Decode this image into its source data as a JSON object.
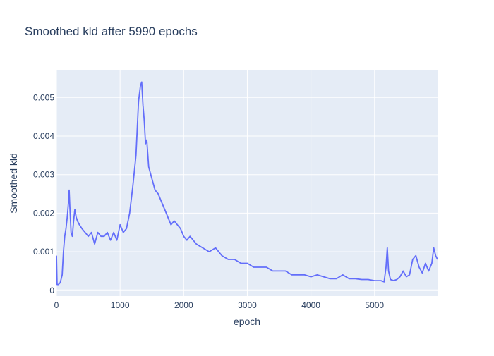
{
  "chart_data": {
    "type": "line",
    "title": "Smoothed kld after 5990 epochs",
    "xlabel": "epoch",
    "ylabel": "Smoothed kld",
    "xlim": [
      0,
      5990
    ],
    "ylim": [
      -0.00015,
      0.0057
    ],
    "x_ticks": [
      0,
      1000,
      2000,
      3000,
      4000,
      5000
    ],
    "x_tick_labels": [
      "0",
      "1000",
      "2000",
      "3000",
      "4000",
      "5000"
    ],
    "y_ticks": [
      0,
      0.001,
      0.002,
      0.003,
      0.004,
      0.005
    ],
    "y_tick_labels": [
      "0",
      "0.001",
      "0.002",
      "0.003",
      "0.004",
      "0.005"
    ],
    "grid": true,
    "colors": {
      "line": "#636efa",
      "plot_bg": "#e5ecf6",
      "grid": "#ffffff",
      "text": "#2a3f5f"
    },
    "series": [
      {
        "x": [
          0,
          10,
          30,
          60,
          90,
          110,
          130,
          150,
          170,
          190,
          200,
          210,
          230,
          250,
          270,
          290,
          310,
          330,
          360,
          400,
          450,
          500,
          550,
          600,
          650,
          700,
          750,
          800,
          850,
          900,
          950,
          1000,
          1050,
          1100,
          1150,
          1200,
          1250,
          1290,
          1320,
          1340,
          1360,
          1380,
          1400,
          1420,
          1450,
          1500,
          1550,
          1600,
          1650,
          1700,
          1750,
          1800,
          1850,
          1900,
          1950,
          2000,
          2050,
          2100,
          2200,
          2300,
          2400,
          2500,
          2600,
          2700,
          2800,
          2900,
          3000,
          3100,
          3200,
          3300,
          3400,
          3500,
          3600,
          3700,
          3800,
          3900,
          4000,
          4100,
          4200,
          4300,
          4400,
          4500,
          4600,
          4700,
          4800,
          4900,
          5000,
          5100,
          5150,
          5180,
          5200,
          5220,
          5250,
          5300,
          5350,
          5400,
          5450,
          5500,
          5550,
          5600,
          5650,
          5700,
          5750,
          5800,
          5850,
          5900,
          5930,
          5960,
          5990
        ],
        "y": [
          0.0009,
          0.00015,
          0.00015,
          0.0002,
          0.0004,
          0.001,
          0.0014,
          0.0016,
          0.0019,
          0.0023,
          0.0026,
          0.0022,
          0.0015,
          0.0014,
          0.0018,
          0.0021,
          0.0019,
          0.0018,
          0.0017,
          0.0016,
          0.0015,
          0.0014,
          0.0015,
          0.0012,
          0.0015,
          0.0014,
          0.0014,
          0.0015,
          0.0013,
          0.0015,
          0.0013,
          0.0017,
          0.0015,
          0.0016,
          0.002,
          0.0027,
          0.0035,
          0.0049,
          0.0053,
          0.0054,
          0.0048,
          0.0044,
          0.0038,
          0.0039,
          0.0032,
          0.0029,
          0.0026,
          0.0025,
          0.0023,
          0.0021,
          0.0019,
          0.0017,
          0.0018,
          0.0017,
          0.0016,
          0.0014,
          0.0013,
          0.0014,
          0.0012,
          0.0011,
          0.001,
          0.0011,
          0.0009,
          0.0008,
          0.0008,
          0.0007,
          0.0007,
          0.0006,
          0.0006,
          0.0006,
          0.0005,
          0.0005,
          0.0005,
          0.0004,
          0.0004,
          0.0004,
          0.00035,
          0.0004,
          0.00035,
          0.0003,
          0.0003,
          0.0004,
          0.0003,
          0.0003,
          0.00028,
          0.00028,
          0.00025,
          0.00025,
          0.00022,
          0.0006,
          0.0011,
          0.0005,
          0.00028,
          0.00025,
          0.00028,
          0.00035,
          0.0005,
          0.00035,
          0.0004,
          0.0008,
          0.0009,
          0.0006,
          0.00045,
          0.0007,
          0.0005,
          0.0007,
          0.0011,
          0.0009,
          0.0008
        ]
      }
    ]
  }
}
